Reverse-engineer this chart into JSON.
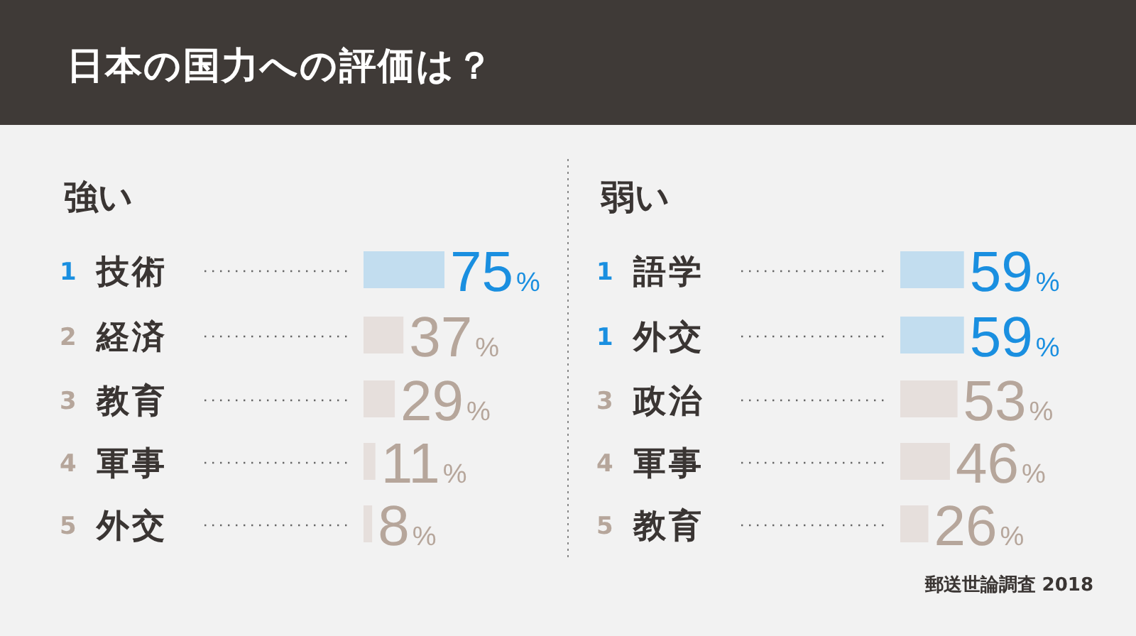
{
  "chart_data": [
    {
      "type": "bar",
      "orientation": "horizontal",
      "title": "日本の国力への評価は？",
      "subtitle": "強い",
      "categories": [
        "1 技術",
        "2 経済",
        "3 教育",
        "4 軍事",
        "5 外交"
      ],
      "values": [
        75,
        37,
        29,
        11,
        8
      ],
      "colors": [
        "#c2ddef",
        "#e6dfdc",
        "#e6dfdc",
        "#e6dfdc",
        "#e6dfdc"
      ],
      "value_labels": [
        "75%",
        "37%",
        "29%",
        "11%",
        "8%"
      ]
    },
    {
      "type": "bar",
      "orientation": "horizontal",
      "subtitle": "弱い",
      "categories": [
        "1 語学",
        "1 外交",
        "3 政治",
        "4 軍事",
        "5 教育"
      ],
      "values": [
        59,
        59,
        53,
        46,
        26
      ],
      "colors": [
        "#c2ddef",
        "#c2ddef",
        "#e6dfdc",
        "#e6dfdc",
        "#e6dfdc"
      ],
      "value_labels": [
        "59%",
        "59%",
        "53%",
        "46%",
        "26%"
      ],
      "annotations": [
        "郵送世論調査 2018"
      ]
    }
  ]
}
